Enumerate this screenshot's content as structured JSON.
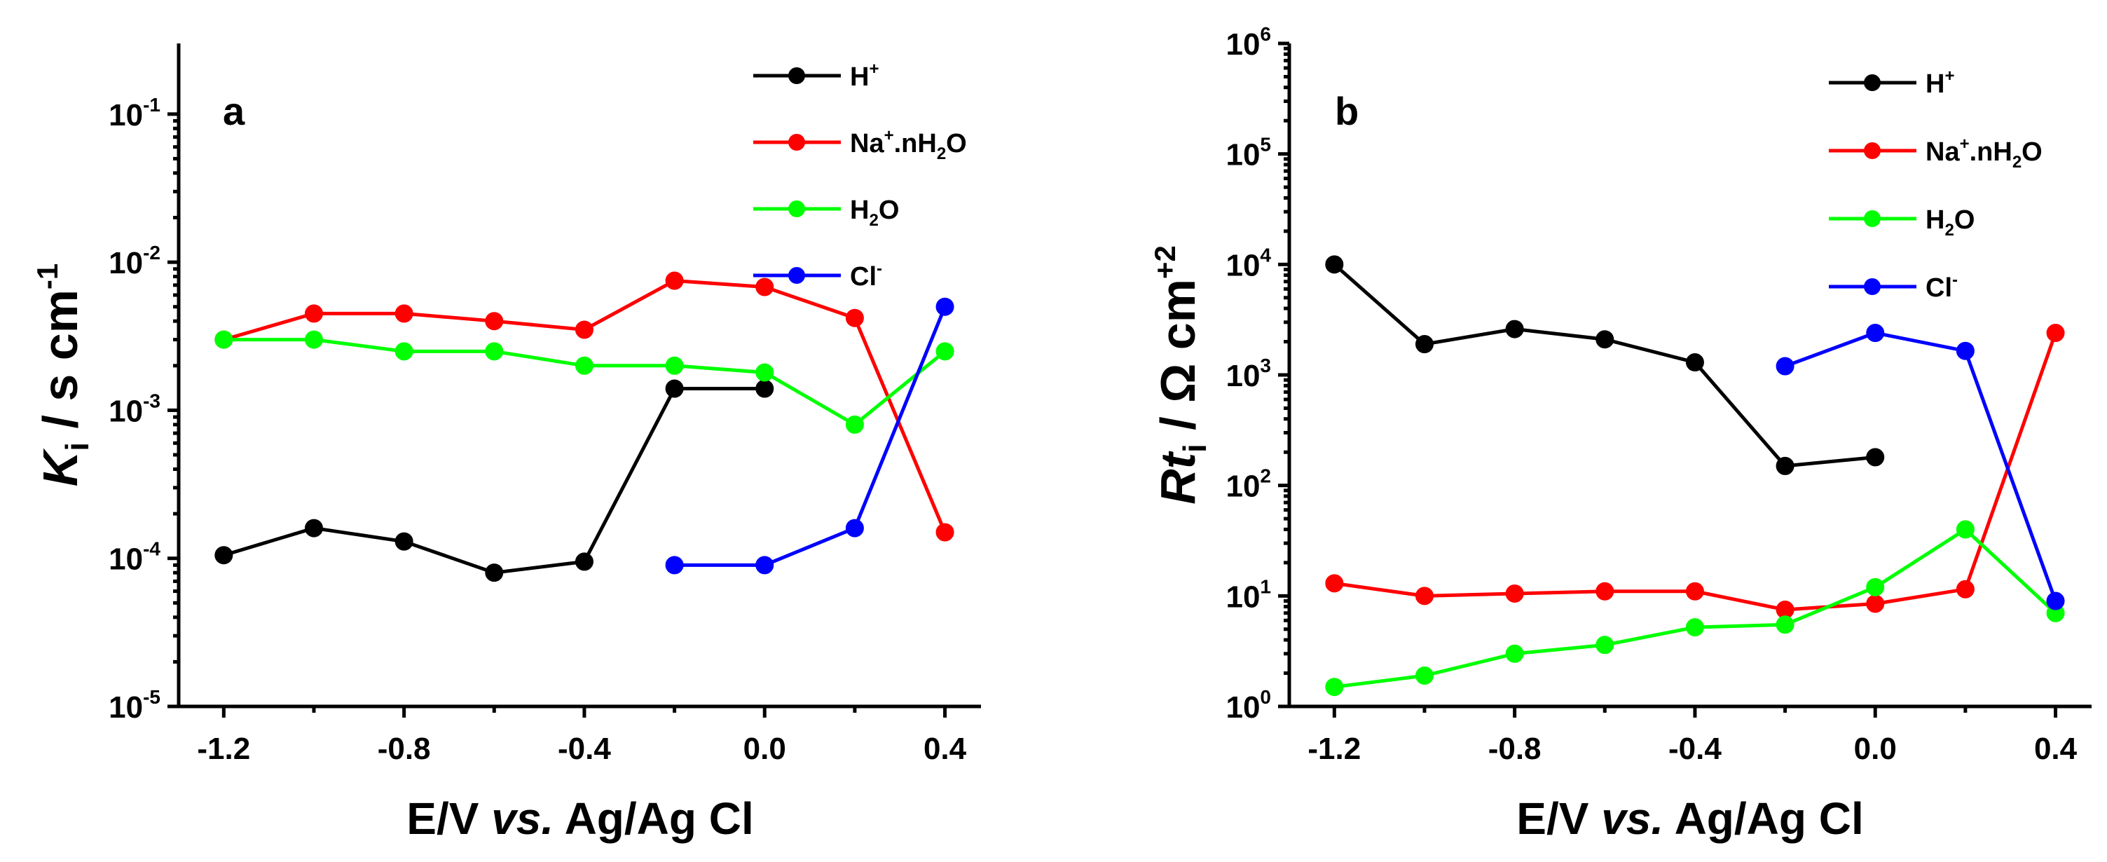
{
  "chart_data": [
    {
      "type": "line",
      "panel_label": "a",
      "xlabel": {
        "prefix": "E/V ",
        "italic": "vs.",
        "suffix": " Ag/Ag Cl"
      },
      "ylabel": {
        "symbol": "K",
        "subscript": "i",
        "unit": " / s cm",
        "superscript": "-1"
      },
      "yscale": "log",
      "ylim": [
        1e-05,
        0.3
      ],
      "xlim": [
        -1.3,
        0.48
      ],
      "xticks": [
        -1.2,
        -0.8,
        -0.4,
        0.0,
        0.4
      ],
      "xtick_labels": [
        "-1.2",
        "-0.8",
        "-0.4",
        "0.0",
        "0.4"
      ],
      "yticks": [
        {
          "value": 1e-05,
          "base": "10",
          "exp": "-5"
        },
        {
          "value": 0.0001,
          "base": "10",
          "exp": "-4"
        },
        {
          "value": 0.001,
          "base": "10",
          "exp": "-3"
        },
        {
          "value": 0.01,
          "base": "10",
          "exp": "-2"
        },
        {
          "value": 0.1,
          "base": "10",
          "exp": "-1"
        }
      ],
      "legend_position": "top-right",
      "series": [
        {
          "name": "H+",
          "label_main": "H",
          "label_sup": "+",
          "label_sub": "",
          "label_tail": "",
          "color": "#000000",
          "x": [
            -1.2,
            -1.0,
            -0.8,
            -0.6,
            -0.4,
            -0.2,
            0.0
          ],
          "y": [
            0.000105,
            0.00016,
            0.00013,
            8e-05,
            9.5e-05,
            0.0014,
            0.0014
          ]
        },
        {
          "name": "Na+.nH2O",
          "label_main": "Na",
          "label_sup": "+",
          "label_sub": "2",
          "label_tail": "O",
          "label_mid": ".nH",
          "color": "#ff0000",
          "x": [
            -1.2,
            -1.0,
            -0.8,
            -0.6,
            -0.4,
            -0.2,
            0.0,
            0.2,
            0.4
          ],
          "y": [
            0.003,
            0.0045,
            0.0045,
            0.004,
            0.0035,
            0.0075,
            0.0068,
            0.0042,
            0.00015
          ]
        },
        {
          "name": "H2O",
          "label_main": "H",
          "label_sup": "",
          "label_sub": "2",
          "label_tail": "O",
          "color": "#00ff00",
          "x": [
            -1.2,
            -1.0,
            -0.8,
            -0.6,
            -0.4,
            -0.2,
            0.0,
            0.2,
            0.4
          ],
          "y": [
            0.003,
            0.003,
            0.0025,
            0.0025,
            0.002,
            0.002,
            0.0018,
            0.0008,
            0.0025
          ]
        },
        {
          "name": "Cl-",
          "label_main": "Cl",
          "label_sup": "-",
          "label_sub": "",
          "label_tail": "",
          "color": "#0000ff",
          "x": [
            -0.2,
            0.0,
            0.2,
            0.4
          ],
          "y": [
            9e-05,
            9e-05,
            0.00016,
            0.005
          ]
        }
      ]
    },
    {
      "type": "line",
      "panel_label": "b",
      "xlabel": {
        "prefix": "E/V ",
        "italic": "vs.",
        "suffix": " Ag/Ag Cl"
      },
      "ylabel": {
        "symbol": "Rt",
        "subscript": "i",
        "unit": " / Ω cm",
        "superscript": "+2"
      },
      "yscale": "log",
      "ylim": [
        1,
        1000000
      ],
      "xlim": [
        -1.3,
        0.48
      ],
      "xticks": [
        -1.2,
        -0.8,
        -0.4,
        0.0,
        0.4
      ],
      "xtick_labels": [
        "-1.2",
        "-0.8",
        "-0.4",
        "0.0",
        "0.4"
      ],
      "yticks": [
        {
          "value": 1,
          "base": "10",
          "exp": "0"
        },
        {
          "value": 10,
          "base": "10",
          "exp": "1"
        },
        {
          "value": 100,
          "base": "10",
          "exp": "2"
        },
        {
          "value": 1000,
          "base": "10",
          "exp": "3"
        },
        {
          "value": 10000,
          "base": "10",
          "exp": "4"
        },
        {
          "value": 100000,
          "base": "10",
          "exp": "5"
        },
        {
          "value": 1000000,
          "base": "10",
          "exp": "6"
        }
      ],
      "legend_position": "top-right",
      "series": [
        {
          "name": "H+",
          "label_main": "H",
          "label_sup": "+",
          "label_sub": "",
          "label_tail": "",
          "color": "#000000",
          "x": [
            -1.2,
            -1.0,
            -0.8,
            -0.6,
            -0.4,
            -0.2,
            0.0
          ],
          "y": [
            10000,
            1900,
            2600,
            2100,
            1300,
            150,
            180
          ]
        },
        {
          "name": "Na+.nH2O",
          "label_main": "Na",
          "label_sup": "+",
          "label_sub": "2",
          "label_tail": "O",
          "label_mid": ".nH",
          "color": "#ff0000",
          "x": [
            -1.2,
            -1.0,
            -0.8,
            -0.6,
            -0.4,
            -0.2,
            0.0,
            0.2,
            0.4
          ],
          "y": [
            13,
            10,
            10.5,
            11,
            11,
            7.5,
            8.5,
            11.5,
            2400
          ]
        },
        {
          "name": "H2O",
          "label_main": "H",
          "label_sup": "",
          "label_sub": "2",
          "label_tail": "O",
          "color": "#00ff00",
          "x": [
            -1.2,
            -1.0,
            -0.8,
            -0.6,
            -0.4,
            -0.2,
            0.0,
            0.2,
            0.4
          ],
          "y": [
            1.5,
            1.9,
            3.0,
            3.6,
            5.2,
            5.5,
            12,
            40,
            7
          ]
        },
        {
          "name": "Cl-",
          "label_main": "Cl",
          "label_sup": "-",
          "label_sub": "",
          "label_tail": "",
          "color": "#0000ff",
          "x": [
            -0.2,
            0.0,
            0.2,
            0.4
          ],
          "y": [
            1200,
            2400,
            1650,
            9
          ]
        }
      ]
    }
  ]
}
